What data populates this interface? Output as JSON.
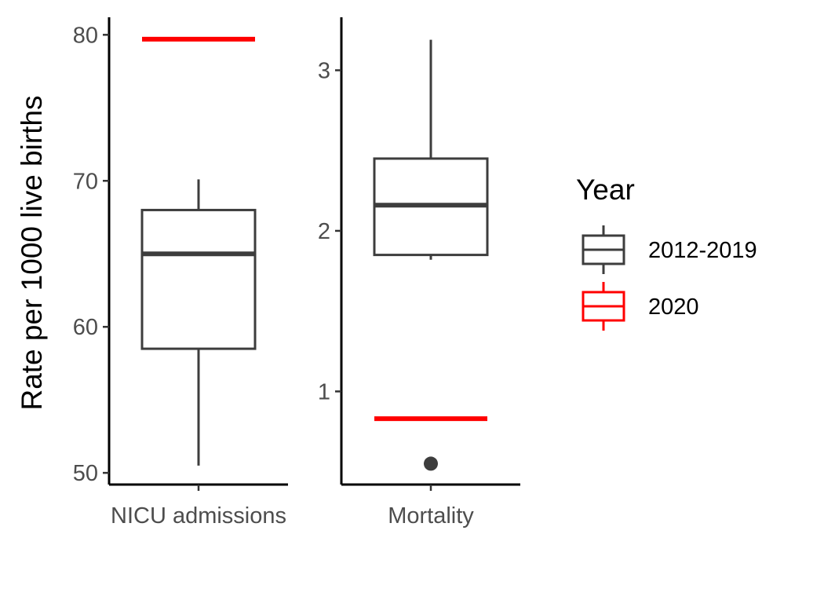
{
  "chart_data": {
    "type": "boxplot",
    "ylabel": "Rate per 1000 live births",
    "legend": {
      "title": "Year",
      "placement": "right",
      "entries": [
        {
          "label": "2012-2019",
          "color": "#3d3d3d"
        },
        {
          "label": "2020",
          "color": "#ff0000"
        }
      ]
    },
    "panels": [
      {
        "category": "NICU admissions",
        "ylim": [
          49.2,
          81.2
        ],
        "yticks": [
          50,
          60,
          70,
          80
        ],
        "box_2012_2019": {
          "min": 50.5,
          "q1": 58.5,
          "median": 65,
          "q3": 68,
          "max": 70.1,
          "outliers": []
        },
        "value_2020": 79.7
      },
      {
        "category": "Mortality",
        "ylim": [
          0.42,
          3.33
        ],
        "yticks": [
          1,
          2,
          3
        ],
        "box_2012_2019": {
          "min": 1.82,
          "q1": 1.85,
          "median": 2.16,
          "q3": 2.45,
          "max": 3.19,
          "outliers": [
            0.55
          ]
        },
        "value_2020": 0.83
      }
    ]
  }
}
